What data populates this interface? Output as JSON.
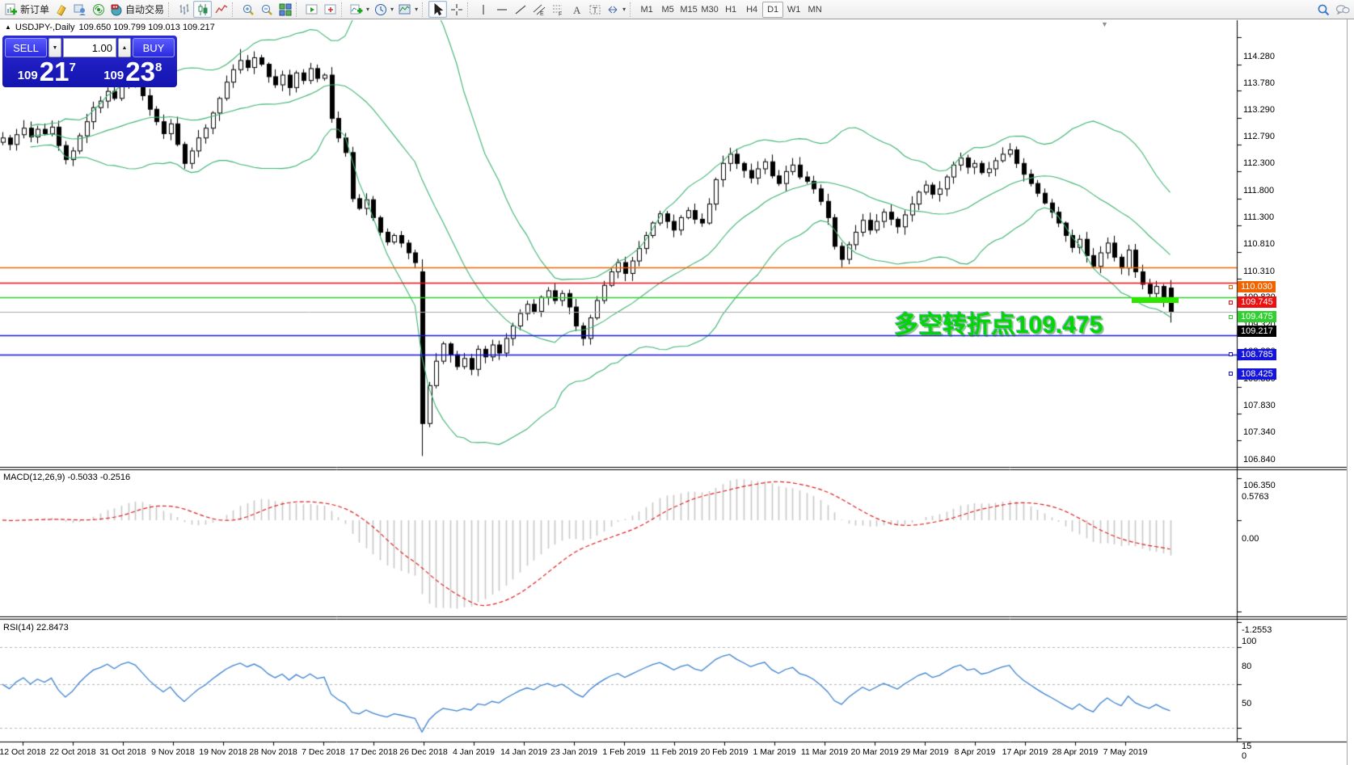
{
  "toolbar": {
    "new_order_label": "新订单",
    "autotrading_label": "自动交易",
    "buttons": [
      {
        "name": "new-order-button",
        "icon": "new-order-icon",
        "label": "新订单"
      },
      {
        "name": "market-watch-button",
        "icon": "market-watch-icon"
      },
      {
        "name": "data-window-button",
        "icon": "data-window-icon"
      },
      {
        "name": "signals-button",
        "icon": "signals-icon"
      },
      {
        "name": "autotrading-button",
        "icon": "autotrading-icon",
        "label": "自动交易"
      },
      {
        "sep": true
      },
      {
        "name": "bar-chart-button",
        "icon": "bar-chart-icon"
      },
      {
        "name": "candle-chart-button",
        "icon": "candle-chart-icon",
        "pressed": true
      },
      {
        "name": "line-chart-button",
        "icon": "line-chart-icon"
      },
      {
        "sep": true
      },
      {
        "name": "zoom-in-button",
        "icon": "zoom-in-icon"
      },
      {
        "name": "zoom-out-button",
        "icon": "zoom-out-icon"
      },
      {
        "name": "tile-windows-button",
        "icon": "tile-windows-icon"
      },
      {
        "sep": true
      },
      {
        "name": "auto-scroll-button",
        "icon": "auto-scroll-icon"
      },
      {
        "name": "chart-shift-button",
        "icon": "chart-shift-icon"
      },
      {
        "sep": true
      },
      {
        "name": "indicators-button",
        "icon": "indicators-icon",
        "dropdown": true
      },
      {
        "name": "periods-button",
        "icon": "clock-icon",
        "dropdown": true
      },
      {
        "name": "templates-button",
        "icon": "template-icon",
        "dropdown": true
      },
      {
        "sep": true
      },
      {
        "name": "cursor-button",
        "icon": "cursor-icon",
        "pressed": true
      },
      {
        "name": "crosshair-button",
        "icon": "crosshair-icon"
      },
      {
        "sep": true
      },
      {
        "name": "vertical-line-button",
        "icon": "vline-icon"
      },
      {
        "name": "horizontal-line-button",
        "icon": "hline-icon"
      },
      {
        "name": "trendline-button",
        "icon": "trendline-icon"
      },
      {
        "name": "channel-button",
        "icon": "channel-icon"
      },
      {
        "name": "fibonacci-button",
        "icon": "fibonacci-icon"
      },
      {
        "name": "text-button",
        "icon": "text-icon"
      },
      {
        "name": "label-button",
        "icon": "label-icon"
      },
      {
        "name": "shapes-button",
        "icon": "shapes-icon",
        "dropdown": true
      },
      {
        "sep": true
      }
    ],
    "timeframes": [
      "M1",
      "M5",
      "M15",
      "M30",
      "H1",
      "H4",
      "D1",
      "W1",
      "MN"
    ],
    "active_timeframe": "D1",
    "right_icons": [
      {
        "name": "search-button",
        "icon": "search-icon"
      },
      {
        "name": "chat-button",
        "icon": "chat-icon"
      }
    ]
  },
  "chart": {
    "symbol_period": "USDJPY-,Daily",
    "ohlc_display": "109.650 109.799 109.013 109.217",
    "collapse_marker": "▲",
    "autoscroll_marker": "▼",
    "trade": {
      "sell_label": "SELL",
      "buy_label": "BUY",
      "volume": "1.00",
      "spin_down": "▼",
      "spin_up": "▲",
      "sell": {
        "small": "109",
        "big": "21",
        "sup": "7"
      },
      "buy": {
        "small": "109",
        "big": "23",
        "sup": "8"
      }
    },
    "annotation": {
      "text": "多空转折点109.475",
      "color": "#00d800"
    },
    "highlight_bar_color": "#2ee600",
    "price_axis_ticks": [
      "114.280",
      "113.780",
      "113.290",
      "112.790",
      "112.300",
      "111.800",
      "111.300",
      "110.810",
      "110.310",
      "109.830",
      "109.320",
      "108.830",
      "108.330",
      "107.830",
      "107.340",
      "106.840",
      "106.350"
    ],
    "hlines": [
      {
        "label": "110.030",
        "price": 110.03,
        "color": "#f06400"
      },
      {
        "label": "109.745",
        "price": 109.745,
        "color": "#ee1010"
      },
      {
        "label": "109.475",
        "price": 109.475,
        "color": "#2fd02f"
      },
      {
        "label": "108.785",
        "price": 108.785,
        "color": "#1414dc"
      },
      {
        "label": "108.425",
        "price": 108.425,
        "color": "#1414dc"
      }
    ],
    "current_price": {
      "label": "109.217",
      "price": 109.217,
      "line_color": "#ababab",
      "bg": "#000000"
    }
  },
  "indicators": {
    "macd": {
      "label": "MACD(12,26,9) -0.5033 -0.2516",
      "value": -0.5033,
      "signal": -0.2516,
      "axis": [
        "0.5763",
        "0.00",
        "-1.2553"
      ]
    },
    "rsi": {
      "label": "RSI(14) 22.8473",
      "value": 22.8473,
      "axis": [
        "100",
        "80",
        "50",
        "15",
        "0"
      ],
      "levels": [
        80,
        50,
        15
      ]
    }
  },
  "chart_data": {
    "type": "candlestick",
    "symbol": "USDJPY",
    "timeframe": "Daily",
    "last_ohlc": {
      "open": 109.65,
      "high": 109.799,
      "low": 109.013,
      "close": 109.217
    },
    "price_axis": {
      "min": 106.35,
      "max": 114.28
    },
    "date_labels": [
      "12 Oct 2018",
      "22 Oct 2018",
      "31 Oct 2018",
      "9 Nov 2018",
      "19 Nov 2018",
      "28 Nov 2018",
      "7 Dec 2018",
      "17 Dec 2018",
      "26 Dec 2018",
      "4 Jan 2019",
      "14 Jan 2019",
      "23 Jan 2019",
      "1 Feb 2019",
      "11 Feb 2019",
      "20 Feb 2019",
      "1 Mar 2019",
      "11 Mar 2019",
      "20 Mar 2019",
      "29 Mar 2019",
      "8 Apr 2019",
      "17 Apr 2019",
      "28 Apr 2019",
      "7 May 2019"
    ],
    "closes": [
      112.42,
      112.3,
      112.48,
      112.6,
      112.44,
      112.58,
      112.5,
      112.62,
      112.28,
      112.02,
      112.18,
      112.46,
      112.72,
      112.98,
      113.1,
      113.28,
      113.15,
      113.38,
      113.5,
      113.42,
      113.2,
      112.95,
      112.72,
      112.5,
      112.68,
      112.3,
      111.95,
      112.18,
      112.42,
      112.6,
      112.88,
      113.15,
      113.45,
      113.68,
      113.85,
      113.72,
      113.9,
      113.78,
      113.55,
      113.4,
      113.58,
      113.35,
      113.62,
      113.48,
      113.7,
      113.52,
      113.58,
      112.78,
      112.42,
      112.15,
      111.3,
      111.12,
      111.28,
      110.95,
      110.68,
      110.5,
      110.62,
      110.48,
      110.3,
      110.12,
      107.15,
      107.85,
      108.3,
      108.62,
      108.42,
      108.2,
      108.35,
      108.15,
      108.52,
      108.38,
      108.6,
      108.45,
      108.72,
      108.95,
      109.18,
      109.35,
      109.22,
      109.48,
      109.6,
      109.42,
      109.55,
      109.3,
      108.95,
      108.72,
      109.1,
      109.42,
      109.7,
      109.95,
      110.12,
      109.92,
      110.15,
      110.38,
      110.62,
      110.85,
      111.02,
      110.88,
      110.72,
      110.95,
      111.08,
      110.92,
      110.85,
      111.2,
      111.65,
      111.95,
      112.12,
      111.95,
      111.82,
      111.68,
      111.85,
      111.98,
      111.72,
      111.58,
      111.8,
      111.92,
      111.7,
      111.62,
      111.48,
      111.25,
      110.95,
      110.42,
      110.18,
      110.45,
      110.68,
      110.9,
      110.72,
      110.88,
      111.05,
      110.92,
      110.78,
      111.0,
      111.2,
      111.42,
      111.55,
      111.38,
      111.48,
      111.7,
      111.92,
      112.05,
      111.88,
      111.95,
      111.78,
      111.85,
      112.0,
      112.12,
      112.2,
      111.95,
      111.75,
      111.58,
      111.4,
      111.22,
      111.05,
      110.85,
      110.62,
      110.4,
      110.55,
      110.25,
      110.05,
      110.3,
      110.48,
      110.22,
      110.02,
      110.35,
      109.95,
      109.72,
      109.55,
      109.68,
      109.42,
      109.217
    ],
    "overrides": {
      "34": {
        "high": 114.06
      },
      "60": {
        "open": 109.95,
        "low": 106.55
      },
      "167": {
        "open": 109.65,
        "high": 109.799,
        "low": 109.013,
        "close": 109.217
      }
    },
    "bollinger": {
      "period": 20,
      "deviation": 2
    },
    "macd_params": {
      "fast": 12,
      "slow": 26,
      "signal": 9
    },
    "rsi_params": {
      "period": 14
    },
    "colors": {
      "candle_up": "#ffffff",
      "candle_down": "#000000",
      "candle_border": "#000000",
      "bollinger": "#3CB371",
      "macd_hist": "#c8c8c8",
      "macd_signal": "#e02020",
      "rsi_line": "#3b82d0",
      "level_dash": "#b5b5b5"
    }
  }
}
